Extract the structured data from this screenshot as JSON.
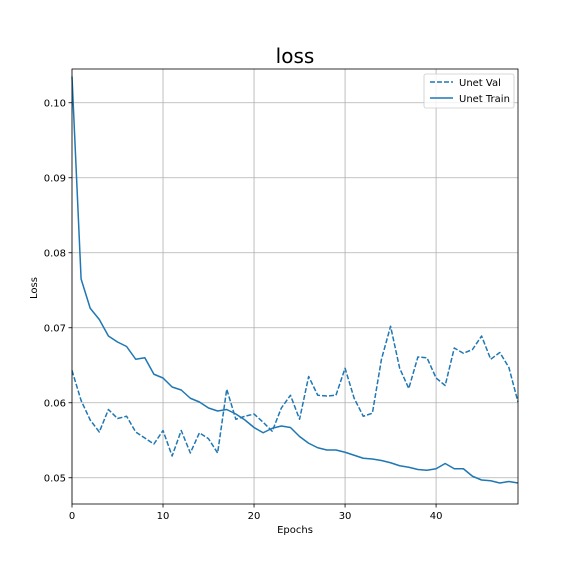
{
  "chart_data": {
    "type": "line",
    "title": "loss",
    "xlabel": "Epochs",
    "ylabel": "Loss",
    "xlim": [
      0,
      49
    ],
    "ylim": [
      0.0465,
      0.1045
    ],
    "xticks": [
      0,
      10,
      20,
      30,
      40
    ],
    "xtick_labels": [
      "0",
      "10",
      "20",
      "30",
      "40"
    ],
    "yticks": [
      0.05,
      0.06,
      0.07,
      0.08,
      0.09,
      0.1
    ],
    "ytick_labels": [
      "0.05",
      "0.06",
      "0.07",
      "0.08",
      "0.09",
      "0.10"
    ],
    "grid": true,
    "legend_position": "top-right",
    "x": [
      0,
      1,
      2,
      3,
      4,
      5,
      6,
      7,
      8,
      9,
      10,
      11,
      12,
      13,
      14,
      15,
      16,
      17,
      18,
      19,
      20,
      21,
      22,
      23,
      24,
      25,
      26,
      27,
      28,
      29,
      30,
      31,
      32,
      33,
      34,
      35,
      36,
      37,
      38,
      39,
      40,
      41,
      42,
      43,
      44,
      45,
      46,
      47,
      48,
      49
    ],
    "series": [
      {
        "name": "Unet Val",
        "color": "#1f77b4",
        "style": "dashed",
        "values": [
          0.0643,
          0.0603,
          0.0577,
          0.0561,
          0.0591,
          0.0579,
          0.0582,
          0.0561,
          0.0553,
          0.0545,
          0.0563,
          0.0529,
          0.0563,
          0.0533,
          0.056,
          0.0552,
          0.0533,
          0.0618,
          0.0578,
          0.0582,
          0.0585,
          0.0574,
          0.0562,
          0.0593,
          0.061,
          0.0578,
          0.0635,
          0.061,
          0.0609,
          0.061,
          0.0646,
          0.0606,
          0.0582,
          0.0586,
          0.0658,
          0.0702,
          0.0646,
          0.0619,
          0.0661,
          0.066,
          0.0633,
          0.0623,
          0.0673,
          0.0666,
          0.0671,
          0.0689,
          0.0658,
          0.0667,
          0.0647,
          0.0601
        ]
      },
      {
        "name": "Unet Train",
        "color": "#1f77b4",
        "style": "solid",
        "values": [
          0.1035,
          0.0765,
          0.0726,
          0.0711,
          0.0689,
          0.0681,
          0.0675,
          0.0658,
          0.066,
          0.0638,
          0.0633,
          0.0621,
          0.0617,
          0.0606,
          0.0601,
          0.0593,
          0.0589,
          0.0591,
          0.0585,
          0.0577,
          0.0567,
          0.056,
          0.0566,
          0.0569,
          0.0567,
          0.0555,
          0.0546,
          0.054,
          0.0537,
          0.0537,
          0.0534,
          0.053,
          0.0526,
          0.0525,
          0.0523,
          0.052,
          0.0516,
          0.0514,
          0.0511,
          0.051,
          0.0512,
          0.0519,
          0.0512,
          0.0512,
          0.0502,
          0.0497,
          0.0496,
          0.0493,
          0.0495,
          0.0493
        ]
      }
    ]
  }
}
